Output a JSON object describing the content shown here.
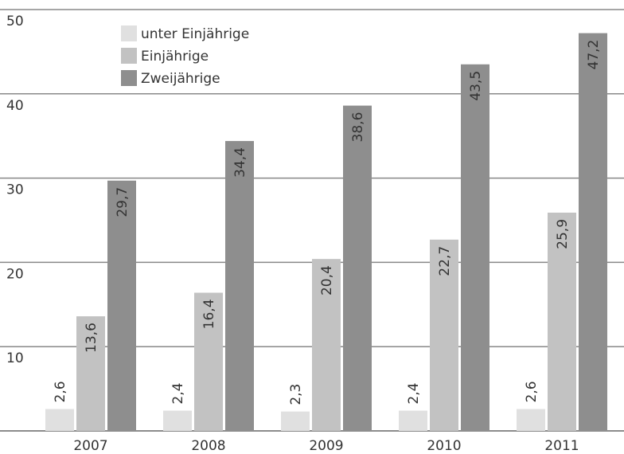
{
  "chart_data": {
    "type": "bar",
    "categories": [
      "2007",
      "2008",
      "2009",
      "2010",
      "2011"
    ],
    "series": [
      {
        "name": "unter Einjährige",
        "color": "#e0e0e0",
        "values": [
          2.6,
          2.4,
          2.3,
          2.4,
          2.6
        ],
        "value_labels": [
          "2,6",
          "2,4",
          "2,3",
          "2,4",
          "2,6"
        ]
      },
      {
        "name": "Einjährige",
        "color": "#c2c2c2",
        "values": [
          13.6,
          16.4,
          20.4,
          22.7,
          25.9
        ],
        "value_labels": [
          "13,6",
          "16,4",
          "20,4",
          "22,7",
          "25,9"
        ]
      },
      {
        "name": "Zweijährige",
        "color": "#8e8e8e",
        "values": [
          29.7,
          34.4,
          38.6,
          43.5,
          47.2
        ],
        "value_labels": [
          "29,7",
          "34,4",
          "38,6",
          "43,5",
          "47,2"
        ]
      }
    ],
    "ylim": [
      0,
      50
    ],
    "yticks": [
      10,
      20,
      30,
      40,
      50
    ],
    "grid": true,
    "legend": "top-left"
  }
}
